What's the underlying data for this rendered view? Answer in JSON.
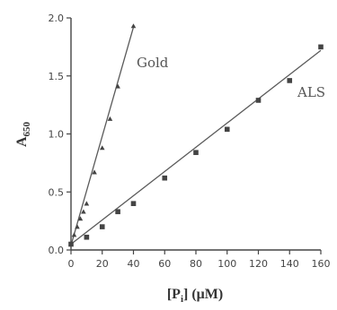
{
  "chart_data": {
    "type": "scatter",
    "xlabel_main": "[P",
    "xlabel_sub": "i",
    "xlabel_unit": "]  (μM)",
    "ylabel_main": "A",
    "ylabel_sub": "650",
    "xlim": [
      0,
      160
    ],
    "ylim": [
      0,
      2.0
    ],
    "xticks": [
      0,
      20,
      40,
      60,
      80,
      100,
      120,
      140,
      160
    ],
    "yticks": [
      0.0,
      0.5,
      1.0,
      1.5,
      2.0
    ],
    "xtick_labels": [
      "0",
      "20",
      "40",
      "60",
      "80",
      "100",
      "120",
      "140",
      "160"
    ],
    "ytick_labels": [
      "0.0",
      "0.5",
      "1.0",
      "1.5",
      "2.0"
    ],
    "grid": false,
    "series": [
      {
        "name": "Gold",
        "marker": "triangle",
        "color": "#444444",
        "x": [
          0,
          2,
          4,
          6,
          8,
          10,
          15,
          20,
          25,
          30,
          40
        ],
        "y": [
          0.05,
          0.13,
          0.2,
          0.27,
          0.33,
          0.4,
          0.67,
          0.88,
          1.13,
          1.41,
          1.93
        ],
        "fit": [
          [
            0,
            0.04
          ],
          [
            40,
            1.92
          ]
        ]
      },
      {
        "name": "ALS",
        "marker": "square",
        "color": "#444444",
        "x": [
          0,
          10,
          20,
          30,
          40,
          60,
          80,
          100,
          120,
          140,
          160
        ],
        "y": [
          0.05,
          0.11,
          0.2,
          0.33,
          0.4,
          0.62,
          0.84,
          1.04,
          1.29,
          1.46,
          1.75
        ],
        "fit": [
          [
            0,
            0.05
          ],
          [
            160,
            1.72
          ]
        ]
      }
    ]
  }
}
